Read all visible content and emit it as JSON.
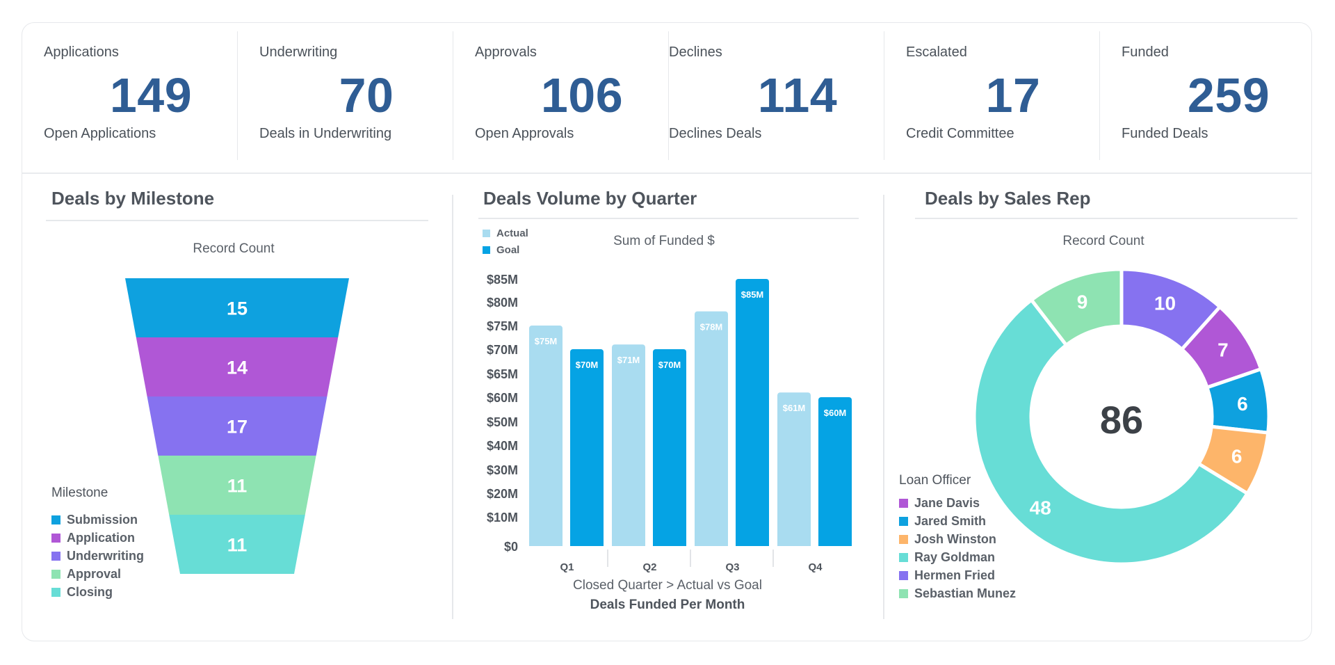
{
  "kpis": [
    {
      "label": "Applications",
      "value": "149",
      "sub": "Open Applications"
    },
    {
      "label": "Underwriting",
      "value": "70",
      "sub": "Deals in Underwriting"
    },
    {
      "label": "Approvals",
      "value": "106",
      "sub": "Open Approvals"
    },
    {
      "label": "Declines",
      "value": "114",
      "sub": "Declines Deals"
    },
    {
      "label": "Escalated",
      "value": "17",
      "sub": "Credit Committee"
    },
    {
      "label": "Funded",
      "value": "259",
      "sub": "Funded Deals"
    }
  ],
  "panels": {
    "milestone": {
      "title": "Deals by Milestone",
      "subtitle": "Record Count",
      "legend_title": "Milestone"
    },
    "volume": {
      "title": "Deals Volume by Quarter",
      "subtitle": "Sum of Funded $",
      "xlabel": "Closed Quarter > Actual vs Goal",
      "caption": "Deals Funded Per Month"
    },
    "salesrep": {
      "title": "Deals by Sales Rep",
      "subtitle": "Record Count",
      "legend_title": "Loan Officer",
      "total": "86"
    }
  },
  "chart_data": [
    {
      "type": "funnel",
      "title": "Deals by Milestone",
      "subtitle": "Record Count",
      "categories": [
        "Submission",
        "Application",
        "Underwriting",
        "Approval",
        "Closing"
      ],
      "values": [
        15,
        14,
        17,
        11,
        11
      ],
      "colors": [
        "#0ea1df",
        "#b057d6",
        "#8672f0",
        "#8ee3b2",
        "#67ddd6"
      ],
      "legend_title": "Milestone",
      "legend": "bottom-left"
    },
    {
      "type": "bar",
      "title": "Deals Volume by Quarter",
      "subtitle": "Sum of Funded $",
      "categories": [
        "Q1",
        "Q2",
        "Q3",
        "Q4"
      ],
      "series": [
        {
          "name": "Actual",
          "values": [
            75,
            71,
            78,
            61
          ],
          "labels": [
            "$75M",
            "$71M",
            "$78M",
            "$61M"
          ],
          "color": "#a9dcf0"
        },
        {
          "name": "Goal",
          "values": [
            70,
            70,
            85,
            60
          ],
          "labels": [
            "$70M",
            "$70M",
            "$85M",
            "$60M"
          ],
          "color": "#05a3e4"
        }
      ],
      "yticks": [
        "$0",
        "$10M",
        "$20M",
        "$30M",
        "$40M",
        "$50M",
        "$60M",
        "$65M",
        "$70M",
        "$75M",
        "$80M",
        "$85M"
      ],
      "xlabel": "Closed Quarter > Actual vs Goal",
      "caption": "Deals Funded Per Month",
      "legend": "top-left",
      "grid": false
    },
    {
      "type": "pie",
      "title": "Deals by Sales Rep",
      "subtitle": "Record Count",
      "total": 86,
      "slices": [
        {
          "value": 10,
          "color": "#8672f0"
        },
        {
          "value": 7,
          "color": "#b057d6"
        },
        {
          "value": 6,
          "color": "#0ea1df"
        },
        {
          "value": 6,
          "color": "#fdb56a"
        },
        {
          "value": 48,
          "color": "#67ddd6"
        },
        {
          "value": 9,
          "color": "#8ee3b2"
        }
      ],
      "legend_title": "Loan Officer",
      "legend_entries": [
        {
          "name": "Jane Davis",
          "color": "#b057d6"
        },
        {
          "name": "Jared Smith",
          "color": "#0ea1df"
        },
        {
          "name": "Josh Winston",
          "color": "#fdb56a"
        },
        {
          "name": "Ray Goldman",
          "color": "#67ddd6"
        },
        {
          "name": "Hermen Fried",
          "color": "#8672f0"
        },
        {
          "name": "Sebastian Munez",
          "color": "#8ee3b2"
        }
      ],
      "legend": "bottom-left"
    }
  ]
}
